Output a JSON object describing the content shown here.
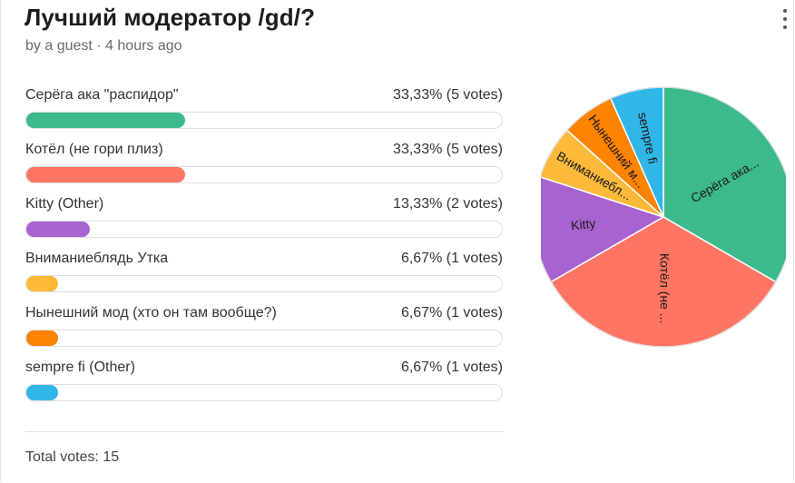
{
  "poll": {
    "title": "Лучший модератор /gd/?",
    "meta": "by a guest · 4 hours ago",
    "total_votes": "Total votes: 15"
  },
  "options": [
    {
      "label": "Серёга ака \"распидор\"",
      "pct_text": "33,33% (5 votes)",
      "fraction": 0.3333,
      "color": "#3dba8c",
      "pie_label": "Серёга ака..."
    },
    {
      "label": "Котёл (не гори плиз)",
      "pct_text": "33,33% (5 votes)",
      "fraction": 0.3333,
      "color": "#ff7563",
      "pie_label": "Котёл (не ..."
    },
    {
      "label": "Kitty (Other)",
      "pct_text": "13,33% (2 votes)",
      "fraction": 0.1333,
      "color": "#a963d0",
      "pie_label": "Kitty"
    },
    {
      "label": "Вниманиеблядь Утка",
      "pct_text": "6,67% (1 votes)",
      "fraction": 0.0667,
      "color": "#fcb93a",
      "pie_label": "Вниманиебл..."
    },
    {
      "label": "Нынешний мод (хто он там вообще?)",
      "pct_text": "6,67% (1 votes)",
      "fraction": 0.0667,
      "color": "#fd8300",
      "pie_label": "Нынешний м..."
    },
    {
      "label": "sempre fi (Other)",
      "pct_text": "6,67% (1 votes)",
      "fraction": 0.0667,
      "color": "#32b6e8",
      "pie_label": "sempre fi"
    }
  ],
  "chart_data": {
    "type": "pie",
    "categories": [
      "Серёга ака...",
      "Котёл (не ...",
      "Kitty",
      "Вниманиебл...",
      "Нынешний м...",
      "sempre fi"
    ],
    "values": [
      5,
      5,
      2,
      1,
      1,
      1
    ],
    "colors": [
      "#3dba8c",
      "#ff7563",
      "#a963d0",
      "#fcb93a",
      "#fd8300",
      "#32b6e8"
    ]
  },
  "icons": {
    "menu": "kebab-menu-icon"
  }
}
